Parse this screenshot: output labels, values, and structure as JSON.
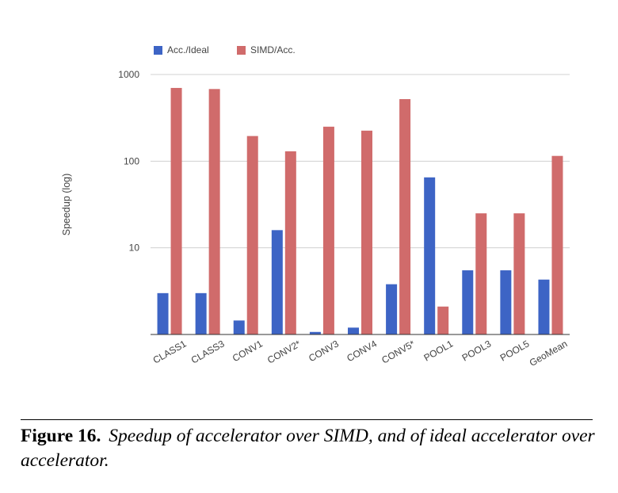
{
  "chart_data": {
    "type": "bar",
    "ylabel": "Speedup (log)",
    "yscale": "log",
    "ylim": [
      1,
      1000
    ],
    "yticks": [
      10,
      100,
      1000
    ],
    "ytick_labels": [
      "10",
      "100",
      "1000"
    ],
    "grid": true,
    "legend_position": "top-left",
    "categories": [
      "CLASS1",
      "CLASS3",
      "CONV1",
      "CONV2*",
      "CONV3",
      "CONV4",
      "CONV5*",
      "POOL1",
      "POOL3",
      "POOL5",
      "GeoMean"
    ],
    "series": [
      {
        "name": "Acc./Ideal",
        "color": "#3d64c5",
        "values": [
          3.0,
          3.0,
          1.45,
          16,
          1.07,
          1.2,
          3.8,
          65,
          5.5,
          5.5,
          4.3
        ]
      },
      {
        "name": "SIMD/Acc.",
        "color": "#d06b6b",
        "values": [
          700,
          680,
          195,
          130,
          250,
          225,
          520,
          2.1,
          25,
          25,
          115
        ]
      }
    ]
  },
  "caption": {
    "label": "Figure 16.",
    "text": "Speedup of accelerator over SIMD, and of ideal accelerator over accelerator."
  }
}
